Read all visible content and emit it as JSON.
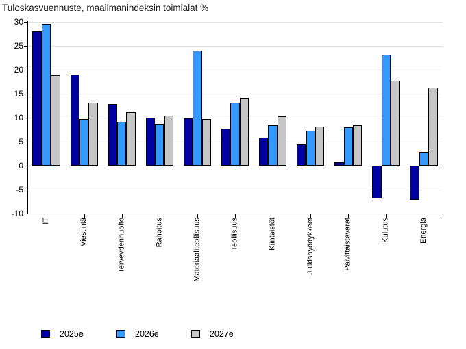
{
  "chart_data": {
    "type": "bar",
    "title": "Tuloskasvuennuste, maailmanindeksin toimialat %",
    "categories": [
      "IT",
      "Viestintä",
      "Terveydenhuolto",
      "Rahoitus",
      "Materiaaliteollisuus",
      "Teollisuus",
      "Kiinteistöt",
      "Julkishyödykkeet",
      "Päivittäistavarat",
      "Kulutus",
      "Energia"
    ],
    "series": [
      {
        "name": "2025e",
        "color": "#0000A0",
        "values": [
          28.0,
          19.0,
          12.9,
          10.0,
          9.9,
          7.7,
          5.8,
          4.5,
          0.7,
          -6.8,
          -7.1
        ]
      },
      {
        "name": "2026e",
        "color": "#3399FF",
        "values": [
          29.6,
          9.7,
          9.1,
          8.7,
          24.0,
          13.2,
          8.5,
          7.3,
          8.0,
          23.2,
          2.8
        ]
      },
      {
        "name": "2027e",
        "color": "#C6C6C6",
        "values": [
          18.8,
          13.2,
          11.2,
          10.5,
          9.7,
          14.1,
          10.3,
          8.1,
          8.4,
          17.7,
          16.3
        ]
      }
    ],
    "xlabel": "",
    "ylabel": "",
    "ylim": [
      -10,
      30
    ],
    "yticks": [
      30,
      25,
      20,
      15,
      10,
      5,
      0,
      -5,
      -10
    ],
    "grid": true,
    "legend_position": "bottom",
    "gridline_color": "#e0e0e0",
    "bar_outline_color": "#000000"
  }
}
